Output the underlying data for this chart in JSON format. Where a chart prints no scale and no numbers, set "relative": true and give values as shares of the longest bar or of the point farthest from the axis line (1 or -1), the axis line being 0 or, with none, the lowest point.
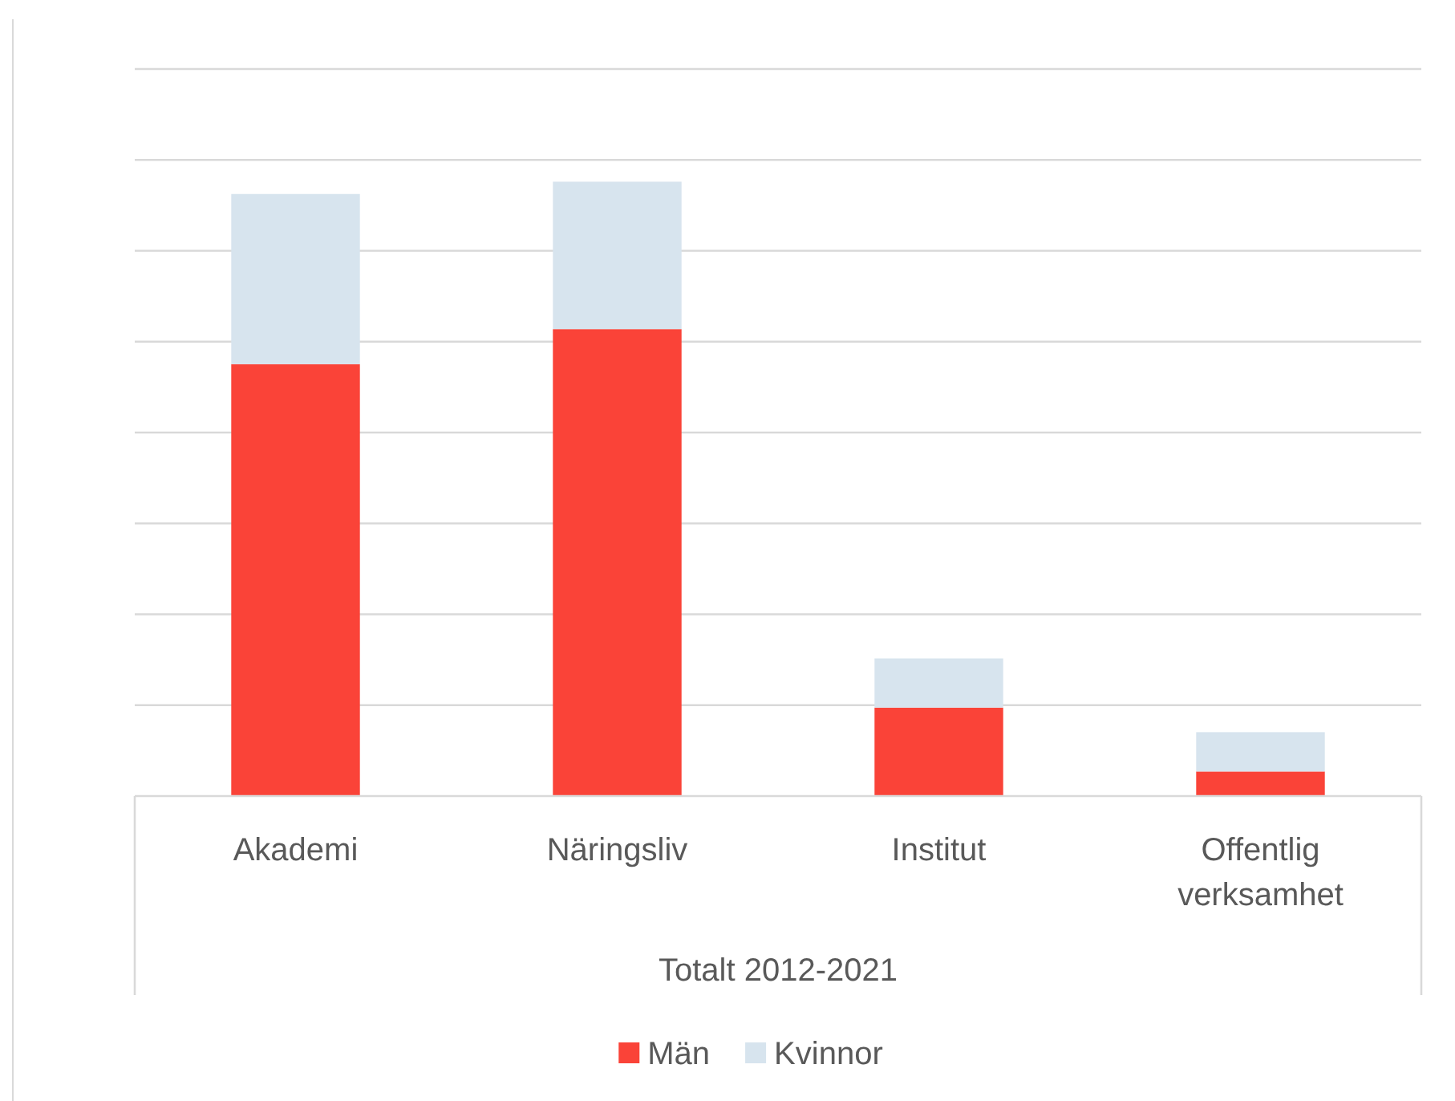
{
  "chart_data": {
    "type": "bar",
    "stacked": true,
    "relative": true,
    "categories": [
      "Akademi",
      "Näringsliv",
      "Institut",
      "Offentlig verksamhet"
    ],
    "xlabel": "Totalt 2012-2021",
    "series": [
      {
        "name": "Män",
        "color": "#fa4338",
        "values": [
          0.703,
          0.76,
          0.144,
          0.04
        ]
      },
      {
        "name": "Kvinnor",
        "color": "#d7e4ee",
        "values": [
          0.277,
          0.24,
          0.08,
          0.064
        ]
      }
    ],
    "grid": "y",
    "legend": "bottom"
  }
}
